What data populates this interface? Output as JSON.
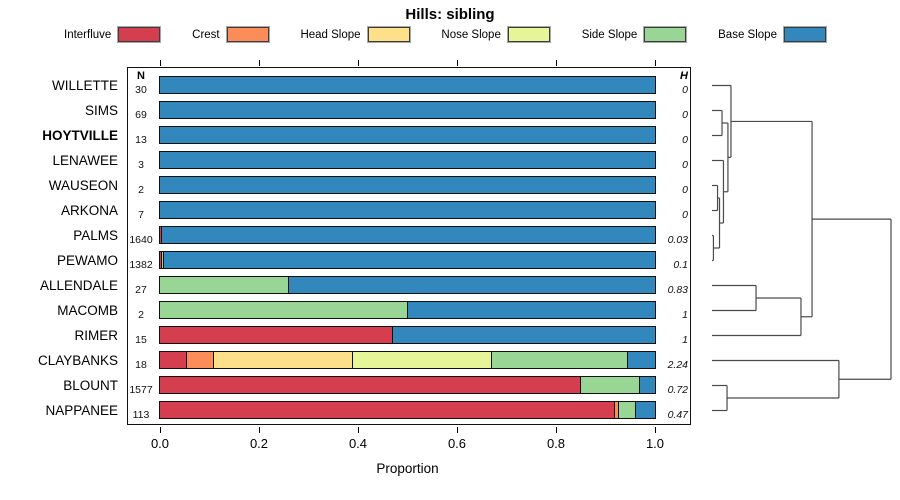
{
  "chart_data": {
    "type": "bar",
    "subtype": "horizontal-stacked-with-dendrogram",
    "title": "Hills: sibling",
    "xlabel": "Proportion",
    "n_header": "N",
    "h_header": "H",
    "x_ticks": [
      "0.0",
      "0.2",
      "0.4",
      "0.6",
      "0.8",
      "1.0"
    ],
    "xlim": [
      0,
      1
    ],
    "legend": [
      {
        "key": "interfluve",
        "label": "Interfluve",
        "color": "#D53E4F"
      },
      {
        "key": "crest",
        "label": "Crest",
        "color": "#FC8D59"
      },
      {
        "key": "head_slope",
        "label": "Head Slope",
        "color": "#FEE08B"
      },
      {
        "key": "nose_slope",
        "label": "Nose Slope",
        "color": "#E6F598"
      },
      {
        "key": "side_slope",
        "label": "Side Slope",
        "color": "#99D594"
      },
      {
        "key": "base_slope",
        "label": "Base Slope",
        "color": "#3288BD"
      }
    ],
    "rows": [
      {
        "name": "WILLETTE",
        "bold": false,
        "n": "30",
        "h": "0",
        "segments": {
          "base_slope": 1.0
        }
      },
      {
        "name": "SIMS",
        "bold": false,
        "n": "69",
        "h": "0",
        "segments": {
          "base_slope": 1.0
        }
      },
      {
        "name": "HOYTVILLE",
        "bold": true,
        "n": "13",
        "h": "0",
        "segments": {
          "base_slope": 1.0
        }
      },
      {
        "name": "LENAWEE",
        "bold": false,
        "n": "3",
        "h": "0",
        "segments": {
          "base_slope": 1.0
        }
      },
      {
        "name": "WAUSEON",
        "bold": false,
        "n": "2",
        "h": "0",
        "segments": {
          "base_slope": 1.0
        }
      },
      {
        "name": "ARKONA",
        "bold": false,
        "n": "7",
        "h": "0",
        "segments": {
          "base_slope": 1.0
        }
      },
      {
        "name": "PALMS",
        "bold": false,
        "n": "1640",
        "h": "0.03",
        "segments": {
          "interfluve": 0.004,
          "base_slope": 0.996
        }
      },
      {
        "name": "PEWAMO",
        "bold": false,
        "n": "1382",
        "h": "0.1",
        "segments": {
          "interfluve": 0.005,
          "side_slope": 0.005,
          "base_slope": 0.99
        }
      },
      {
        "name": "ALLENDALE",
        "bold": false,
        "n": "27",
        "h": "0.83",
        "segments": {
          "side_slope": 0.26,
          "base_slope": 0.74
        }
      },
      {
        "name": "MACOMB",
        "bold": false,
        "n": "2",
        "h": "1",
        "segments": {
          "side_slope": 0.5,
          "base_slope": 0.5
        }
      },
      {
        "name": "RIMER",
        "bold": false,
        "n": "15",
        "h": "1",
        "segments": {
          "interfluve": 0.47,
          "base_slope": 0.53
        }
      },
      {
        "name": "CLAYBANKS",
        "bold": false,
        "n": "18",
        "h": "2.24",
        "segments": {
          "interfluve": 0.055,
          "crest": 0.055,
          "head_slope": 0.28,
          "nose_slope": 0.28,
          "side_slope": 0.275,
          "base_slope": 0.055
        }
      },
      {
        "name": "BLOUNT",
        "bold": false,
        "n": "1577",
        "h": "0.72",
        "segments": {
          "interfluve": 0.85,
          "side_slope": 0.12,
          "base_slope": 0.03
        }
      },
      {
        "name": "NAPPANEE",
        "bold": false,
        "n": "113",
        "h": "0.47",
        "segments": {
          "interfluve": 0.92,
          "crest": 0.009,
          "side_slope": 0.035,
          "base_slope": 0.036
        }
      }
    ],
    "dendrogram": {
      "note": "heights normalized 0-1, root = 1",
      "merges": [
        {
          "id": "a1",
          "children": [
            "SIMS",
            "HOYTVILLE"
          ],
          "height": 0.056
        },
        {
          "id": "a2",
          "children": [
            "WAUSEON",
            "ARKONA"
          ],
          "height": 0.031
        },
        {
          "id": "a3",
          "children": [
            "PALMS",
            "PEWAMO"
          ],
          "height": 0.008
        },
        {
          "id": "a4",
          "children": [
            "a2",
            "a3"
          ],
          "height": 0.042
        },
        {
          "id": "a5",
          "children": [
            "LENAWEE",
            "a4"
          ],
          "height": 0.064
        },
        {
          "id": "a6",
          "children": [
            "a1",
            "a5"
          ],
          "height": 0.089
        },
        {
          "id": "a7",
          "children": [
            "WILLETTE",
            "a6"
          ],
          "height": 0.106
        },
        {
          "id": "b1",
          "children": [
            "ALLENDALE",
            "MACOMB"
          ],
          "height": 0.246
        },
        {
          "id": "b2",
          "children": [
            "b1",
            "RIMER"
          ],
          "height": 0.497
        },
        {
          "id": "c1",
          "children": [
            "a7",
            "b2"
          ],
          "height": 0.559
        },
        {
          "id": "d1",
          "children": [
            "BLOUNT",
            "NAPPANEE"
          ],
          "height": 0.084
        },
        {
          "id": "d2",
          "children": [
            "CLAYBANKS",
            "d1"
          ],
          "height": 0.709
        },
        {
          "id": "root",
          "children": [
            "c1",
            "d2"
          ],
          "height": 1.0
        }
      ]
    },
    "colors": {
      "bar_border": "#111111",
      "dendro_line": "#4a4a4a",
      "axis": "#000000"
    }
  }
}
